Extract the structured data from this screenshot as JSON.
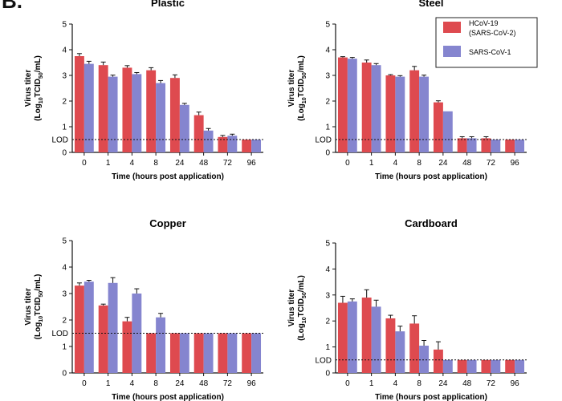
{
  "panel_label": "B.",
  "chart_data": [
    {
      "type": "bar",
      "title": "Plastic",
      "xlabel": "Time (hours post application)",
      "ylabel": "Virus titer",
      "ylabel_line2_prefix": "(Log",
      "ylabel_sub": "10",
      "ylabel_line2_mid": "TCID",
      "ylabel_sub2": "50",
      "ylabel_line2_suffix": "/mL)",
      "ylim": [
        0,
        5
      ],
      "yticks": [
        "0",
        "1",
        "2",
        "3",
        "4",
        "5"
      ],
      "lod_value": 0.5,
      "lod_label": "LOD",
      "categories": [
        "0",
        "1",
        "4",
        "8",
        "24",
        "48",
        "72",
        "96"
      ],
      "series": [
        {
          "name": "HCoV-19 (SARS-CoV-2)",
          "values": [
            3.75,
            3.4,
            3.3,
            3.2,
            2.9,
            1.45,
            0.6,
            0.5
          ],
          "errors": [
            0.1,
            0.12,
            0.08,
            0.1,
            0.12,
            0.12,
            0.06,
            0
          ]
        },
        {
          "name": "SARS-CoV-1",
          "values": [
            3.45,
            2.95,
            3.05,
            2.7,
            1.85,
            0.85,
            0.65,
            0.5
          ],
          "errors": [
            0.1,
            0.06,
            0.06,
            0.1,
            0.06,
            0.08,
            0.06,
            0
          ]
        }
      ]
    },
    {
      "type": "bar",
      "title": "Steel",
      "xlabel": "Time (hours post application)",
      "ylabel": "Virus titer",
      "ylabel_line2_prefix": "(Log",
      "ylabel_sub": "10",
      "ylabel_line2_mid": "TCID",
      "ylabel_sub2": "50",
      "ylabel_line2_suffix": "/mL)",
      "ylim": [
        0,
        5
      ],
      "yticks": [
        "0",
        "1",
        "2",
        "3",
        "4",
        "5"
      ],
      "lod_value": 0.5,
      "lod_label": "LOD",
      "categories": [
        "0",
        "1",
        "4",
        "8",
        "24",
        "48",
        "72",
        "96"
      ],
      "series": [
        {
          "name": "HCoV-19 (SARS-CoV-2)",
          "values": [
            3.7,
            3.5,
            3.0,
            3.2,
            1.95,
            0.55,
            0.55,
            0.5
          ],
          "errors": [
            0.03,
            0.1,
            0.03,
            0.15,
            0.06,
            0.06,
            0.06,
            0
          ]
        },
        {
          "name": "SARS-CoV-1",
          "values": [
            3.65,
            3.4,
            2.95,
            2.95,
            1.6,
            0.55,
            0.5,
            0.5
          ],
          "errors": [
            0.05,
            0.06,
            0.04,
            0.06,
            0,
            0.06,
            0,
            0
          ]
        }
      ]
    },
    {
      "type": "bar",
      "title": "Copper",
      "xlabel": "Time (hours post application)",
      "ylabel": "Virus titer",
      "ylabel_line2_prefix": "(Log",
      "ylabel_sub": "10",
      "ylabel_line2_mid": "TCID",
      "ylabel_sub2": "50",
      "ylabel_line2_suffix": "/mL)",
      "ylim": [
        0,
        5
      ],
      "yticks": [
        "0",
        "1",
        "2",
        "3",
        "4",
        "5"
      ],
      "lod_value": 1.5,
      "lod_label": "LOD",
      "categories": [
        "0",
        "1",
        "4",
        "8",
        "24",
        "48",
        "72",
        "96"
      ],
      "series": [
        {
          "name": "HCoV-19 (SARS-CoV-2)",
          "values": [
            3.3,
            2.55,
            1.95,
            1.5,
            1.5,
            1.5,
            1.5,
            1.5
          ],
          "errors": [
            0.1,
            0.05,
            0.15,
            0,
            0,
            0,
            0,
            0
          ]
        },
        {
          "name": "SARS-CoV-1",
          "values": [
            3.45,
            3.4,
            3.0,
            2.1,
            1.5,
            1.5,
            1.5,
            1.5
          ],
          "errors": [
            0.05,
            0.2,
            0.18,
            0.15,
            0,
            0,
            0,
            0
          ]
        }
      ]
    },
    {
      "type": "bar",
      "title": "Cardboard",
      "xlabel": "Time (hours post application)",
      "ylabel": "Virus titer",
      "ylabel_line2_prefix": "(Log",
      "ylabel_sub": "10",
      "ylabel_line2_mid": "TCID",
      "ylabel_sub2": "50",
      "ylabel_line2_suffix": "/mL)",
      "ylim": [
        0,
        5
      ],
      "yticks": [
        "0",
        "1",
        "2",
        "3",
        "4",
        "5"
      ],
      "lod_value": 0.5,
      "lod_label": "LOD",
      "categories": [
        "0",
        "1",
        "4",
        "8",
        "24",
        "48",
        "72",
        "96"
      ],
      "series": [
        {
          "name": "HCoV-19 (SARS-CoV-2)",
          "values": [
            2.7,
            2.9,
            2.1,
            1.9,
            0.9,
            0.5,
            0.5,
            0.5
          ],
          "errors": [
            0.25,
            0.3,
            0.12,
            0.3,
            0.3,
            0,
            0,
            0
          ]
        },
        {
          "name": "SARS-CoV-1",
          "values": [
            2.75,
            2.55,
            1.6,
            1.05,
            0.5,
            0.5,
            0.5,
            0.5
          ],
          "errors": [
            0.1,
            0.25,
            0.2,
            0.2,
            0,
            0,
            0,
            0
          ]
        }
      ]
    }
  ],
  "legend": [
    {
      "label_line1": "HCoV-19",
      "label_line2": "(SARS-CoV-2)",
      "color": "#de4a4f"
    },
    {
      "label_line1": "SARS-CoV-1",
      "label_line2": "",
      "color": "#8585cf"
    }
  ],
  "colors": {
    "series0": "#de4a4f",
    "series1": "#8585cf",
    "axis": "#111111"
  }
}
